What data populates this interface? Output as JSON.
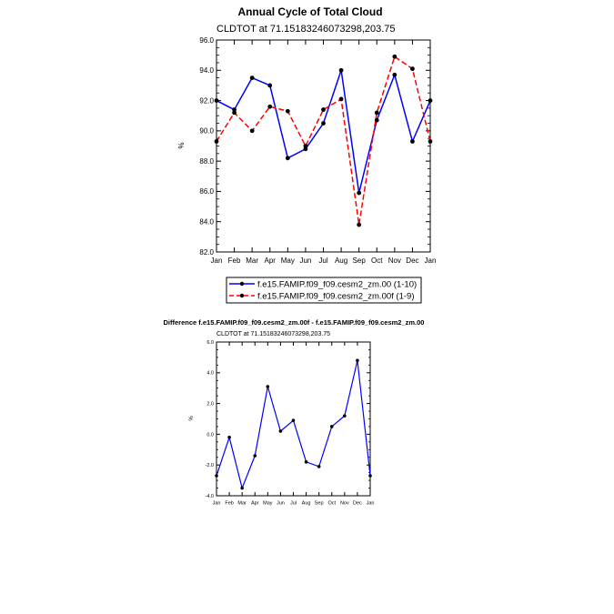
{
  "chart_data": [
    {
      "type": "line",
      "title": "Annual Cycle of Total Cloud",
      "subtitle": "CLDTOT at 71.15183246073298,203.75",
      "ylabel": "%",
      "xlabel": "",
      "ylim": [
        82.0,
        96.0
      ],
      "yticks": [
        "82.0",
        "84.0",
        "86.0",
        "88.0",
        "90.0",
        "92.0",
        "94.0",
        "96.0"
      ],
      "categories": [
        "Jan",
        "Feb",
        "Mar",
        "Apr",
        "May",
        "Jun",
        "Jul",
        "Aug",
        "Sep",
        "Oct",
        "Nov",
        "Dec",
        "Jan"
      ],
      "series": [
        {
          "name": "f.e15.FAMIP.f09_f09.cesm2_zm.00 (1-10)",
          "color": "#0000ff",
          "dash": "solid",
          "values": [
            92.0,
            91.4,
            93.5,
            93.0,
            88.2,
            88.8,
            90.5,
            94.0,
            85.9,
            90.7,
            93.7,
            89.3,
            92.0
          ]
        },
        {
          "name": "f.e15.FAMIP.f09_f09.cesm2_zm.00f (1-9)",
          "color": "#ff0000",
          "dash": "dashed",
          "values": [
            89.3,
            91.2,
            90.0,
            91.6,
            91.3,
            89.0,
            91.4,
            92.1,
            83.8,
            91.2,
            94.9,
            94.1,
            89.3
          ]
        }
      ],
      "legend_placement": "below"
    },
    {
      "type": "line",
      "title": "Difference f.e15.FAMIP.f09_f09.cesm2_zm.00f - f.e15.FAMIP.f09_f09.cesm2_zm.00",
      "subtitle": "CLDTOT at 71.15183246073298,203.75",
      "ylabel": "%",
      "xlabel": "",
      "ylim": [
        -4.0,
        6.0
      ],
      "yticks": [
        "-4.0",
        "-2.0",
        "0.0",
        "2.0",
        "4.0",
        "6.0"
      ],
      "categories": [
        "Jan",
        "Feb",
        "Mar",
        "Apr",
        "May",
        "Jun",
        "Jul",
        "Aug",
        "Sep",
        "Oct",
        "Nov",
        "Dec",
        "Jan"
      ],
      "series": [
        {
          "name": "",
          "color": "#0000ff",
          "dash": "solid",
          "values": [
            -2.7,
            -0.2,
            -3.5,
            -1.4,
            3.1,
            0.2,
            0.9,
            -1.8,
            -2.1,
            0.5,
            1.2,
            4.8,
            -2.7
          ]
        }
      ]
    }
  ]
}
